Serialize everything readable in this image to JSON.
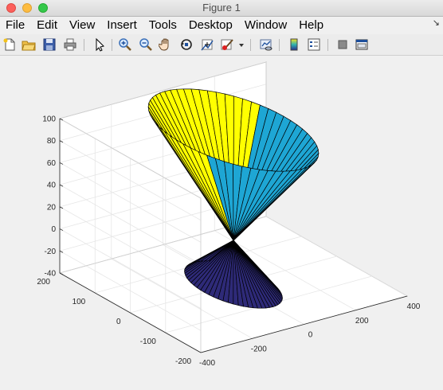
{
  "window": {
    "title": "Figure 1"
  },
  "menu": {
    "items": [
      "File",
      "Edit",
      "View",
      "Insert",
      "Tools",
      "Desktop",
      "Window",
      "Help"
    ],
    "overflow_glyph": "↘"
  },
  "toolbar": {
    "buttons": [
      {
        "icon": "new-figure-icon"
      },
      {
        "icon": "open-file-icon"
      },
      {
        "icon": "save-icon"
      },
      {
        "icon": "print-icon"
      },
      {
        "icon": "pointer-icon"
      },
      {
        "icon": "zoom-in-icon"
      },
      {
        "icon": "zoom-out-icon"
      },
      {
        "icon": "pan-hand-icon"
      },
      {
        "icon": "rotate-3d-icon"
      },
      {
        "icon": "data-cursor-icon"
      },
      {
        "icon": "brush-icon"
      },
      {
        "icon": "brush-dropdown-icon"
      },
      {
        "icon": "link-plot-icon"
      },
      {
        "icon": "colorbar-icon"
      },
      {
        "icon": "legend-icon"
      },
      {
        "icon": "hide-plot-tools-icon"
      },
      {
        "icon": "show-plot-tools-icon"
      }
    ]
  },
  "chart_data": {
    "type": "surface",
    "description_type": "3d-double-cone",
    "z_ticks": [
      100,
      80,
      60,
      40,
      20,
      0,
      -20,
      -40
    ],
    "x_ticks": [
      -400,
      -200,
      0,
      200,
      400
    ],
    "y_ticks": [
      -200,
      -100,
      0,
      100,
      200
    ],
    "xlim": [
      -400,
      400
    ],
    "ylim": [
      -200,
      200
    ],
    "zlim": [
      -40,
      100
    ],
    "grid": true,
    "colors": {
      "top_rim": "#ffff00",
      "upper_cone": "#1ea6d4",
      "lower_cone": "#2e2a78",
      "edges": "#000000"
    }
  }
}
